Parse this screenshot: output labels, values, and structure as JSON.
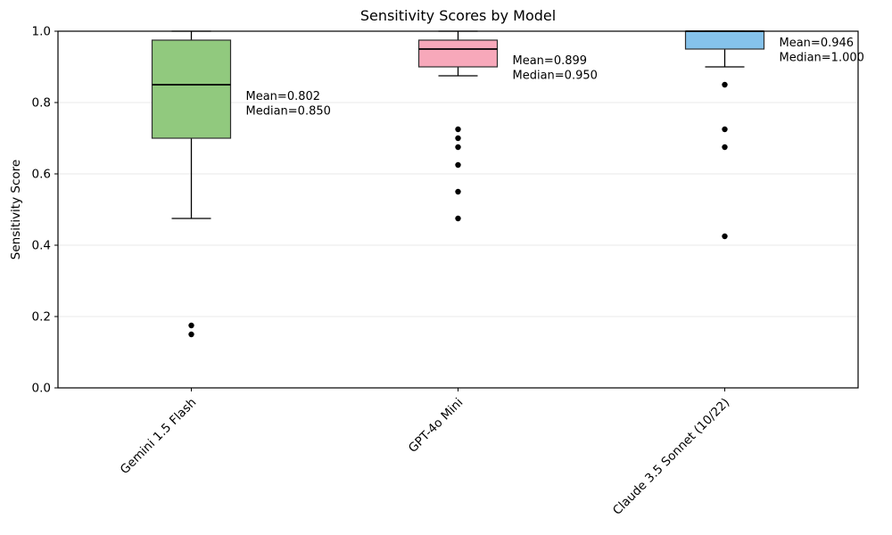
{
  "figure": {
    "title": "Sensitivity Scores by Model",
    "ylabel": "Sensitivity Score"
  },
  "chart_data": {
    "type": "box",
    "title": "Sensitivity Scores by Model",
    "xlabel": "",
    "ylabel": "Sensitivity Score",
    "ylim": [
      0.0,
      1.0
    ],
    "yticks": [
      0.0,
      0.2,
      0.4,
      0.6,
      0.8,
      1.0
    ],
    "ytick_labels": [
      "0.0",
      "0.2",
      "0.4",
      "0.6",
      "0.8",
      "1.0"
    ],
    "grid": "horizontal-light",
    "legend": "none",
    "categories": [
      "Gemini 1.5 Flash",
      "GPT-4o Mini",
      "Claude 3.5 Sonnet (10/22)"
    ],
    "series": [
      {
        "name": "Gemini 1.5 Flash",
        "box_color": "#91c97e",
        "whisker_low": 0.475,
        "q1": 0.7,
        "median": 0.85,
        "q3": 0.975,
        "whisker_high": 1.0,
        "mean": 0.802,
        "outliers": [
          0.175,
          0.15
        ],
        "annotation_lines": [
          "Mean=0.802",
          "Median=0.850"
        ]
      },
      {
        "name": "GPT-4o Mini",
        "box_color": "#f7a8ba",
        "whisker_low": 0.875,
        "q1": 0.9,
        "median": 0.95,
        "q3": 0.975,
        "whisker_high": 1.0,
        "mean": 0.899,
        "outliers": [
          0.725,
          0.7,
          0.675,
          0.625,
          0.55,
          0.475
        ],
        "annotation_lines": [
          "Mean=0.899",
          "Median=0.950"
        ]
      },
      {
        "name": "Claude 3.5 Sonnet (10/22)",
        "box_color": "#85c2eb",
        "whisker_low": 0.9,
        "q1": 0.95,
        "median": 1.0,
        "q3": 1.0,
        "whisker_high": 1.0,
        "mean": 0.946,
        "outliers": [
          0.85,
          0.725,
          0.675,
          0.425
        ],
        "annotation_lines": [
          "Mean=0.946",
          "Median=1.000"
        ]
      }
    ],
    "style": {
      "grid_color": "#e8e8e8",
      "frame_color": "#000000",
      "box_edge_color": "#2e2e2e",
      "median_color": "#000000",
      "whisker_color": "#000000",
      "outlier_color": "#000000"
    }
  }
}
